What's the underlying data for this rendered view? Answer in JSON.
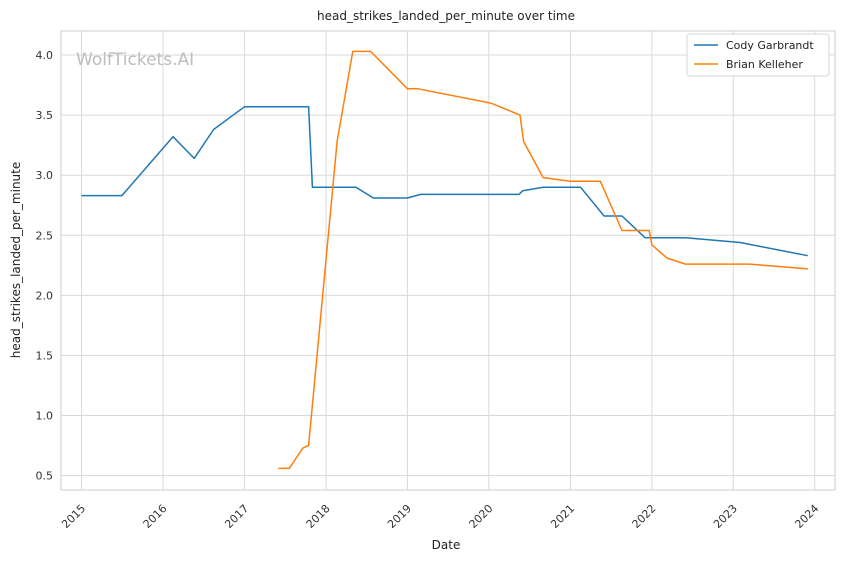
{
  "chart_data": {
    "type": "line",
    "title": "head_strikes_landed_per_minute over time",
    "xlabel": "Date",
    "ylabel": "head_strikes_landed_per_minute",
    "watermark": "WolfTickets.AI",
    "xlim": [
      "2014-10-01",
      "2024-04-01"
    ],
    "ylim": [
      0.38,
      4.2
    ],
    "x_ticks": [
      "2015",
      "2016",
      "2017",
      "2018",
      "2019",
      "2020",
      "2021",
      "2022",
      "2023",
      "2024"
    ],
    "y_ticks": [
      "0.5",
      "1.0",
      "1.5",
      "2.0",
      "2.5",
      "3.0",
      "3.5",
      "4.0"
    ],
    "grid": true,
    "legend_position": "top-right",
    "series": [
      {
        "name": "Cody Garbrandt",
        "color": "#1f77b4",
        "points": [
          [
            "2015-01-01",
            2.83
          ],
          [
            "2015-07-01",
            2.83
          ],
          [
            "2016-02-15",
            3.32
          ],
          [
            "2016-05-20",
            3.14
          ],
          [
            "2016-08-15",
            3.38
          ],
          [
            "2017-01-01",
            3.57
          ],
          [
            "2017-10-15",
            3.57
          ],
          [
            "2017-11-01",
            2.9
          ],
          [
            "2018-05-15",
            2.9
          ],
          [
            "2018-08-01",
            2.81
          ],
          [
            "2019-01-01",
            2.81
          ],
          [
            "2019-03-01",
            2.84
          ],
          [
            "2020-05-15",
            2.84
          ],
          [
            "2020-06-01",
            2.87
          ],
          [
            "2020-09-01",
            2.9
          ],
          [
            "2021-02-15",
            2.9
          ],
          [
            "2021-06-01",
            2.66
          ],
          [
            "2021-08-20",
            2.66
          ],
          [
            "2021-12-01",
            2.48
          ],
          [
            "2022-06-01",
            2.48
          ],
          [
            "2023-02-01",
            2.44
          ],
          [
            "2023-12-01",
            2.33
          ]
        ]
      },
      {
        "name": "Brian Kelleher",
        "color": "#ff7f0e",
        "points": [
          [
            "2017-06-01",
            0.56
          ],
          [
            "2017-07-20",
            0.56
          ],
          [
            "2017-09-20",
            0.73
          ],
          [
            "2017-10-15",
            0.75
          ],
          [
            "2018-02-20",
            3.28
          ],
          [
            "2018-05-01",
            4.03
          ],
          [
            "2018-07-20",
            4.03
          ],
          [
            "2019-01-01",
            3.72
          ],
          [
            "2019-02-15",
            3.72
          ],
          [
            "2020-01-10",
            3.6
          ],
          [
            "2020-05-20",
            3.5
          ],
          [
            "2020-06-05",
            3.28
          ],
          [
            "2020-09-01",
            2.98
          ],
          [
            "2021-01-01",
            2.95
          ],
          [
            "2021-05-15",
            2.95
          ],
          [
            "2021-08-20",
            2.54
          ],
          [
            "2021-12-20",
            2.54
          ],
          [
            "2022-01-01",
            2.42
          ],
          [
            "2022-03-10",
            2.31
          ],
          [
            "2022-06-01",
            2.26
          ],
          [
            "2023-03-15",
            2.26
          ],
          [
            "2023-12-01",
            2.22
          ]
        ]
      }
    ]
  }
}
